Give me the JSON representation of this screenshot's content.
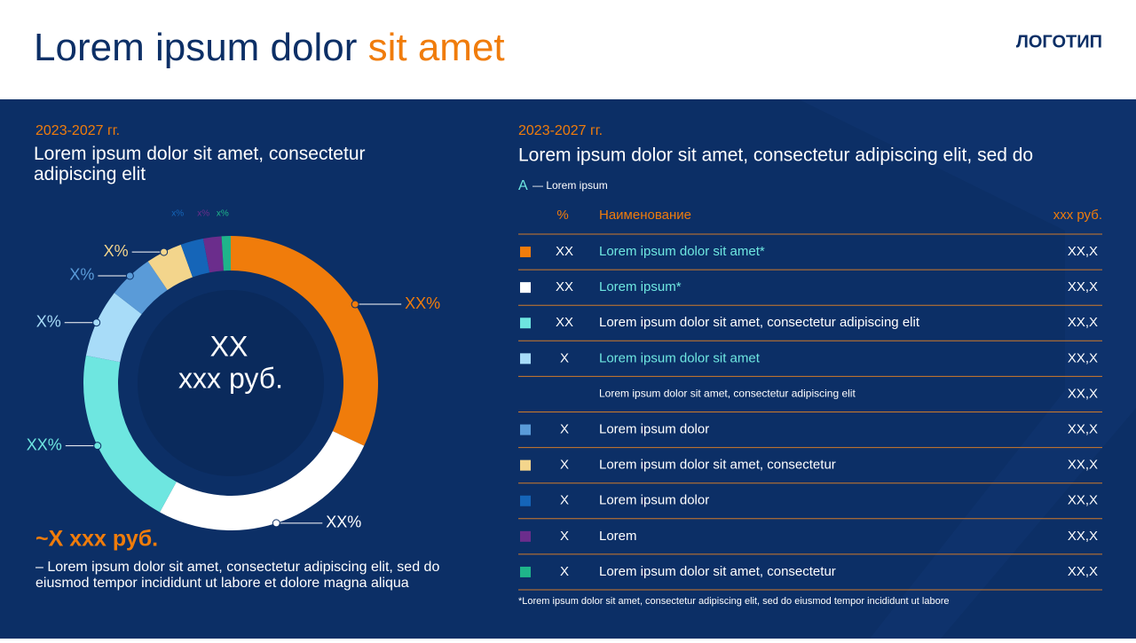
{
  "header": {
    "title_main": "Lorem ipsum dolor ",
    "title_accent": "sit amet",
    "logo": "ЛОГОТИП"
  },
  "left": {
    "period": "2023-2027 гг.",
    "subtitle": "Lorem ipsum dolor sit amet, consectetur adipiscing elit",
    "total": "~X xxx руб.",
    "note": "– Lorem ipsum dolor sit amet, consectetur adipiscing elit, sed do eiusmod tempor incididunt ut labore et dolore magna aliqua"
  },
  "chart_data": {
    "type": "donut",
    "center_value": "XX",
    "center_unit": "xxx руб.",
    "values": [
      32,
      26,
      20,
      7.5,
      5,
      4,
      2.5,
      2,
      1
    ],
    "value_labels": [
      "XX%",
      "XX%",
      "XX%",
      "X%",
      "X%",
      "X%",
      "x%",
      "x%",
      "x%"
    ],
    "colors": [
      "#f07c0b",
      "#ffffff",
      "#6ee6e0",
      "#a8dcf8",
      "#5a9bd8",
      "#f3d58c",
      "#1565b8",
      "#6b2d8c",
      "#1fb58a"
    ]
  },
  "table": {
    "period": "2023-2027 гг.",
    "subtitle": "Lorem ipsum dolor sit amet, consectetur adipiscing elit, sed do",
    "legend_mark": "A",
    "legend_text": "— Lorem ipsum",
    "columns": [
      "%",
      "Наименование",
      "xxx руб."
    ],
    "rows": [
      {
        "swatch": "#f07c0b",
        "pct": "XX",
        "name": "Lorem ipsum dolor sit amet*",
        "name_color": "#6ee6e0",
        "value": "XX,X"
      },
      {
        "swatch": "#ffffff",
        "pct": "XX",
        "name": "Lorem ipsum*",
        "name_color": "#6ee6e0",
        "value": "XX,X"
      },
      {
        "swatch": "#6ee6e0",
        "pct": "XX",
        "name": "Lorem ipsum dolor sit amet, consectetur adipiscing elit",
        "name_color": "#ffffff",
        "value": "XX,X"
      },
      {
        "swatch": "#a8dcf8",
        "pct": "X",
        "name": "Lorem ipsum dolor sit amet",
        "name_color": "#6ee6e0",
        "value": "XX,X"
      },
      {
        "name": "Lorem ipsum dolor sit amet, consectetur adipiscing elit",
        "name_color": "#ffffff",
        "small": true,
        "value": "XX,X"
      },
      {
        "swatch": "#5a9bd8",
        "pct": "X",
        "name": "Lorem ipsum dolor",
        "name_color": "#ffffff",
        "value": "XX,X"
      },
      {
        "swatch": "#f3d58c",
        "pct": "X",
        "name": "Lorem ipsum dolor sit amet, consectetur",
        "name_color": "#ffffff",
        "value": "XX,X"
      },
      {
        "swatch": "#1565b8",
        "pct": "X",
        "name": "Lorem ipsum dolor",
        "name_color": "#ffffff",
        "value": "XX,X"
      },
      {
        "swatch": "#6b2d8c",
        "pct": "X",
        "name": "Lorem",
        "name_color": "#ffffff",
        "value": "XX,X"
      },
      {
        "swatch": "#1fb58a",
        "pct": "X",
        "name": "Lorem ipsum dolor sit amet, consectetur",
        "name_color": "#ffffff",
        "value": "XX,X"
      }
    ],
    "footnote": "*Lorem ipsum dolor sit amet, consectetur adipiscing elit, sed do eiusmod tempor incididunt ut labore"
  }
}
